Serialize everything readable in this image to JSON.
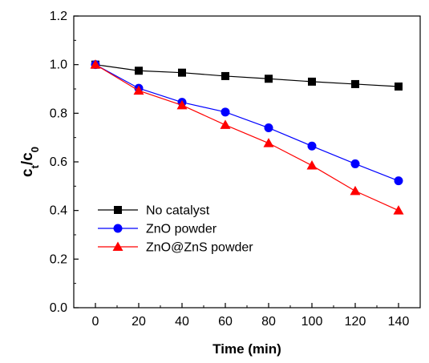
{
  "chart_data": {
    "type": "line",
    "title": "",
    "xlabel": "Time (min)",
    "ylabel": {
      "main": "c",
      "sub1": "t",
      "slash": "/c",
      "sub2": "0"
    },
    "xlim": [
      -10,
      150
    ],
    "ylim": [
      0.0,
      1.2
    ],
    "xticks": [
      0,
      20,
      40,
      60,
      80,
      100,
      120,
      140
    ],
    "yticks": [
      0.0,
      0.2,
      0.4,
      0.6,
      0.8,
      1.0,
      1.2
    ],
    "ytick_labels": [
      "0.0",
      "0.2",
      "0.4",
      "0.6",
      "0.8",
      "1.0",
      "1.2"
    ],
    "grid": false,
    "legend_position": "center-left",
    "x": [
      0,
      20,
      40,
      60,
      80,
      100,
      120,
      140
    ],
    "series": [
      {
        "name": "No catalyst",
        "color": "#000000",
        "marker": "square",
        "values": [
          1.0,
          0.975,
          0.967,
          0.953,
          0.942,
          0.93,
          0.92,
          0.91
        ]
      },
      {
        "name": "ZnO powder",
        "color": "#0000ff",
        "marker": "circle",
        "values": [
          1.0,
          0.903,
          0.845,
          0.805,
          0.74,
          0.665,
          0.592,
          0.522
        ]
      },
      {
        "name": "ZnO@ZnS powder",
        "color": "#ff0000",
        "marker": "triangle",
        "values": [
          1.0,
          0.893,
          0.833,
          0.752,
          0.677,
          0.585,
          0.48,
          0.4
        ]
      }
    ]
  }
}
